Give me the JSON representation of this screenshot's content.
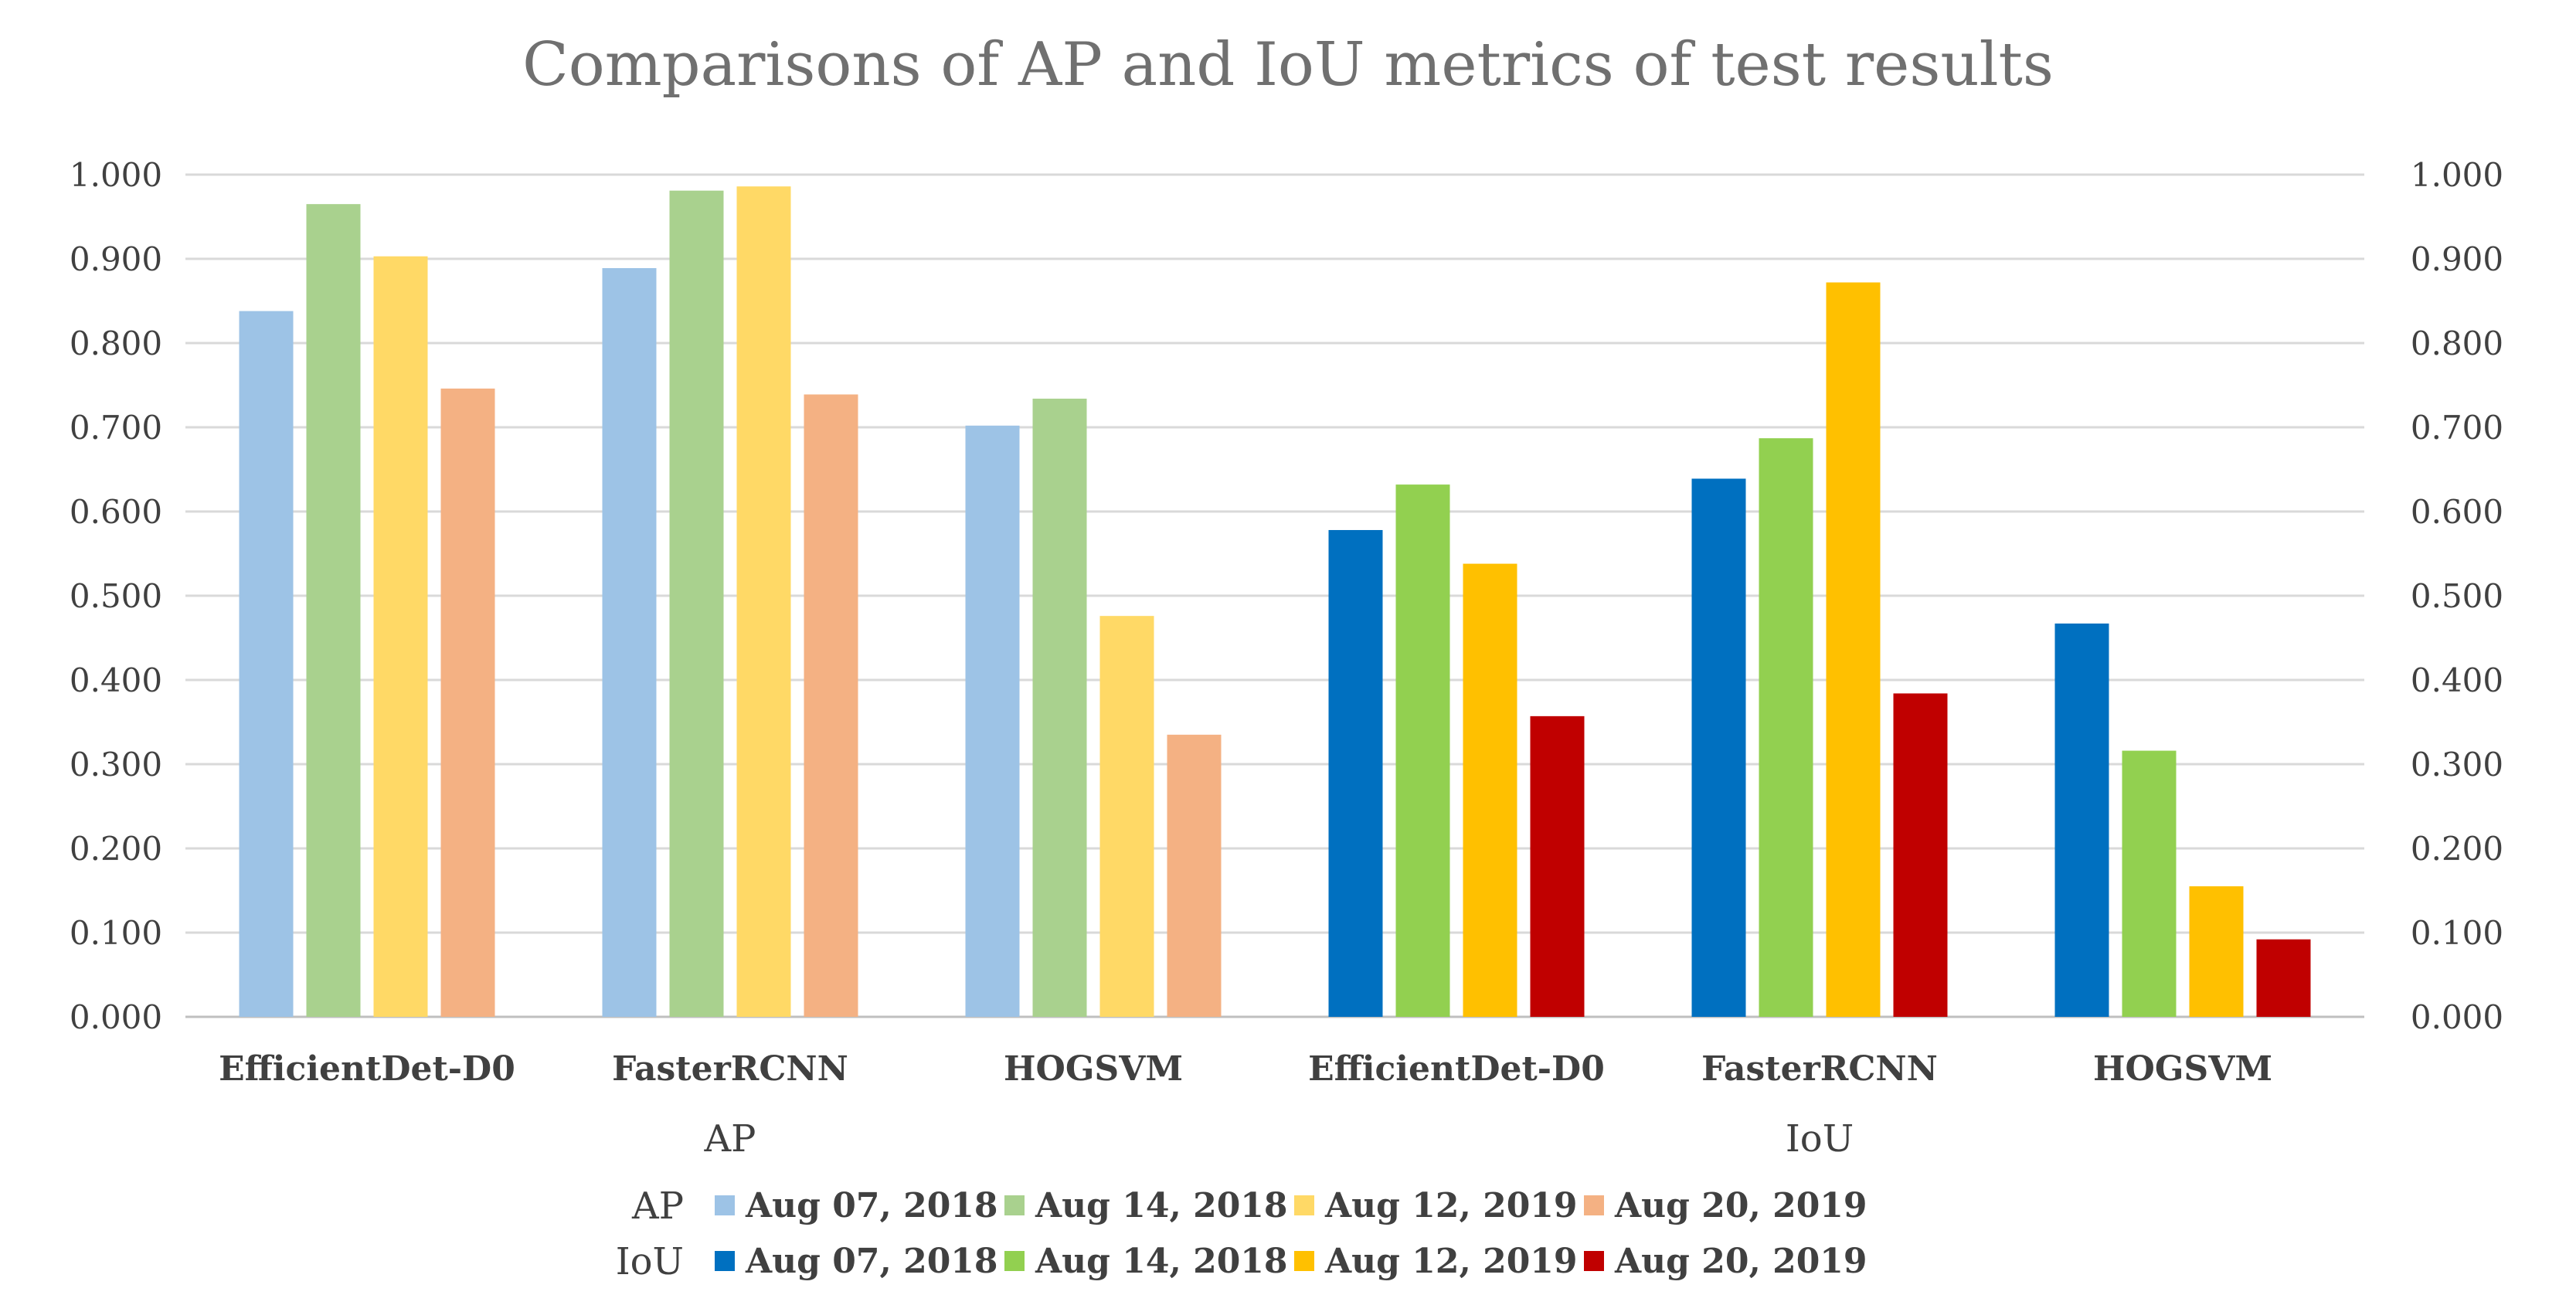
{
  "chart_data": {
    "type": "bar",
    "title": "Comparisons of AP and IoU metrics of test results",
    "ylim": [
      0,
      1
    ],
    "y_ticks": [
      "0.000",
      "0.100",
      "0.200",
      "0.300",
      "0.400",
      "0.500",
      "0.600",
      "0.700",
      "0.800",
      "0.900",
      "1.000"
    ],
    "grid": true,
    "legend_position": "bottom",
    "groups": [
      {
        "name": "AP",
        "categories": [
          "EfficientDet-D0",
          "FasterRCNN",
          "HOGSVM"
        ],
        "series": [
          {
            "name": "Aug 07, 2018",
            "color": "#9dc3e6",
            "values": [
              0.838,
              0.889,
              0.702
            ]
          },
          {
            "name": "Aug 14, 2018",
            "color": "#a9d18e",
            "values": [
              0.965,
              0.981,
              0.734
            ]
          },
          {
            "name": "Aug 12, 2019",
            "color": "#ffd966",
            "values": [
              0.903,
              0.986,
              0.476
            ]
          },
          {
            "name": "Aug 20, 2019",
            "color": "#f4b183",
            "values": [
              0.746,
              0.739,
              0.335
            ]
          }
        ]
      },
      {
        "name": "IoU",
        "categories": [
          "EfficientDet-D0",
          "FasterRCNN",
          "HOGSVM"
        ],
        "series": [
          {
            "name": "Aug 07, 2018",
            "color": "#0070c0",
            "values": [
              0.578,
              0.639,
              0.467
            ]
          },
          {
            "name": "Aug 14, 2018",
            "color": "#92d050",
            "values": [
              0.632,
              0.687,
              0.316
            ]
          },
          {
            "name": "Aug 12, 2019",
            "color": "#ffc000",
            "values": [
              0.538,
              0.872,
              0.155
            ]
          },
          {
            "name": "Aug 20, 2019",
            "color": "#c00000",
            "values": [
              0.357,
              0.384,
              0.092
            ]
          }
        ]
      }
    ]
  }
}
